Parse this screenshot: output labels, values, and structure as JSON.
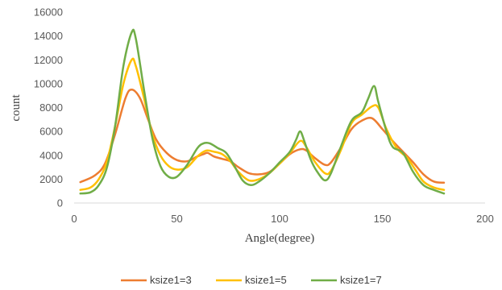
{
  "chart_data": {
    "type": "line",
    "title": "",
    "xlabel": "Angle(degree)",
    "ylabel": "count",
    "xlim": [
      0,
      200
    ],
    "ylim": [
      0,
      16000
    ],
    "xticks": [
      "0",
      "50",
      "100",
      "150",
      "200"
    ],
    "yticks": [
      "0",
      "2000",
      "4000",
      "6000",
      "8000",
      "10000",
      "12000",
      "14000",
      "16000"
    ],
    "grid": false,
    "legend_position": "bottom",
    "series": [
      {
        "name": "ksize1=3",
        "color": "#ED7D31",
        "points": [
          [
            3,
            1750
          ],
          [
            10,
            2300
          ],
          [
            15,
            3300
          ],
          [
            20,
            5800
          ],
          [
            25,
            8800
          ],
          [
            28,
            9500
          ],
          [
            32,
            8800
          ],
          [
            36,
            7000
          ],
          [
            40,
            5300
          ],
          [
            45,
            4200
          ],
          [
            50,
            3600
          ],
          [
            55,
            3500
          ],
          [
            60,
            3900
          ],
          [
            63,
            4100
          ],
          [
            65,
            4200
          ],
          [
            68,
            3900
          ],
          [
            72,
            3700
          ],
          [
            76,
            3500
          ],
          [
            80,
            3000
          ],
          [
            85,
            2500
          ],
          [
            90,
            2400
          ],
          [
            95,
            2600
          ],
          [
            100,
            3300
          ],
          [
            105,
            4100
          ],
          [
            110,
            4500
          ],
          [
            113,
            4400
          ],
          [
            117,
            3800
          ],
          [
            122,
            3200
          ],
          [
            125,
            3400
          ],
          [
            130,
            4700
          ],
          [
            135,
            6200
          ],
          [
            140,
            6900
          ],
          [
            145,
            7100
          ],
          [
            150,
            6200
          ],
          [
            155,
            5200
          ],
          [
            160,
            4300
          ],
          [
            165,
            3400
          ],
          [
            170,
            2400
          ],
          [
            175,
            1800
          ],
          [
            180,
            1700
          ]
        ]
      },
      {
        "name": "ksize1=5",
        "color": "#FFC000",
        "points": [
          [
            3,
            1100
          ],
          [
            8,
            1300
          ],
          [
            12,
            2000
          ],
          [
            16,
            3500
          ],
          [
            20,
            6500
          ],
          [
            24,
            10000
          ],
          [
            28,
            12000
          ],
          [
            30,
            11500
          ],
          [
            34,
            8800
          ],
          [
            38,
            5800
          ],
          [
            42,
            4000
          ],
          [
            46,
            3100
          ],
          [
            50,
            2800
          ],
          [
            55,
            3000
          ],
          [
            60,
            3900
          ],
          [
            63,
            4300
          ],
          [
            65,
            4400
          ],
          [
            68,
            4300
          ],
          [
            72,
            4100
          ],
          [
            76,
            3500
          ],
          [
            80,
            2600
          ],
          [
            85,
            1900
          ],
          [
            90,
            2000
          ],
          [
            95,
            2500
          ],
          [
            100,
            3300
          ],
          [
            105,
            4200
          ],
          [
            110,
            5200
          ],
          [
            113,
            4700
          ],
          [
            117,
            3500
          ],
          [
            122,
            2500
          ],
          [
            125,
            2700
          ],
          [
            130,
            4500
          ],
          [
            135,
            6700
          ],
          [
            140,
            7400
          ],
          [
            145,
            8100
          ],
          [
            148,
            8000
          ],
          [
            152,
            6200
          ],
          [
            157,
            4600
          ],
          [
            162,
            3800
          ],
          [
            166,
            2800
          ],
          [
            170,
            1800
          ],
          [
            175,
            1300
          ],
          [
            180,
            1100
          ]
        ]
      },
      {
        "name": "ksize1=7",
        "color": "#70AD47",
        "points": [
          [
            3,
            800
          ],
          [
            8,
            900
          ],
          [
            12,
            1500
          ],
          [
            16,
            3000
          ],
          [
            20,
            6500
          ],
          [
            24,
            11500
          ],
          [
            28,
            14300
          ],
          [
            30,
            13800
          ],
          [
            34,
            9500
          ],
          [
            38,
            5500
          ],
          [
            42,
            3100
          ],
          [
            46,
            2200
          ],
          [
            50,
            2200
          ],
          [
            55,
            3200
          ],
          [
            60,
            4600
          ],
          [
            63,
            5000
          ],
          [
            66,
            5000
          ],
          [
            70,
            4600
          ],
          [
            74,
            4200
          ],
          [
            78,
            3100
          ],
          [
            82,
            1900
          ],
          [
            86,
            1500
          ],
          [
            90,
            1800
          ],
          [
            95,
            2500
          ],
          [
            100,
            3400
          ],
          [
            105,
            4300
          ],
          [
            108,
            5300
          ],
          [
            110,
            6000
          ],
          [
            112,
            5200
          ],
          [
            115,
            3700
          ],
          [
            118,
            2700
          ],
          [
            122,
            1900
          ],
          [
            125,
            2500
          ],
          [
            130,
            4800
          ],
          [
            135,
            6900
          ],
          [
            140,
            7600
          ],
          [
            143,
            8700
          ],
          [
            146,
            9800
          ],
          [
            148,
            8500
          ],
          [
            152,
            6000
          ],
          [
            155,
            4700
          ],
          [
            160,
            4200
          ],
          [
            165,
            2600
          ],
          [
            170,
            1500
          ],
          [
            175,
            1100
          ],
          [
            180,
            800
          ]
        ]
      }
    ]
  }
}
